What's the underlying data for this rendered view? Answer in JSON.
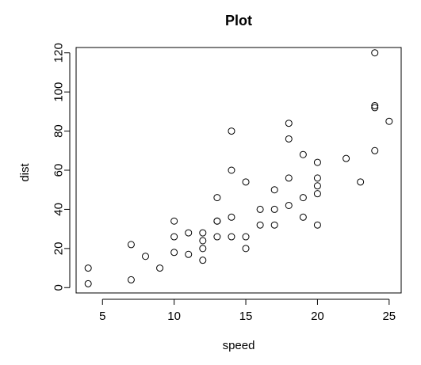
{
  "chart_data": {
    "type": "scatter",
    "title": "Plot",
    "xlabel": "speed",
    "ylabel": "dist",
    "xlim": [
      3.16,
      25.84
    ],
    "ylim": [
      -2.72,
      122.72
    ],
    "xticks": [
      "5",
      "10",
      "15",
      "20",
      "25"
    ],
    "xtick_values": [
      5,
      10,
      15,
      20,
      25
    ],
    "yticks": [
      "0",
      "20",
      "40",
      "60",
      "80",
      "100",
      "120"
    ],
    "ytick_values": [
      0,
      20,
      40,
      60,
      80,
      100,
      120
    ],
    "grid": false,
    "points": [
      {
        "x": 4,
        "y": 2
      },
      {
        "x": 4,
        "y": 10
      },
      {
        "x": 7,
        "y": 4
      },
      {
        "x": 7,
        "y": 22
      },
      {
        "x": 8,
        "y": 16
      },
      {
        "x": 9,
        "y": 10
      },
      {
        "x": 10,
        "y": 18
      },
      {
        "x": 10,
        "y": 26
      },
      {
        "x": 10,
        "y": 34
      },
      {
        "x": 11,
        "y": 17
      },
      {
        "x": 11,
        "y": 28
      },
      {
        "x": 12,
        "y": 14
      },
      {
        "x": 12,
        "y": 20
      },
      {
        "x": 12,
        "y": 24
      },
      {
        "x": 12,
        "y": 28
      },
      {
        "x": 13,
        "y": 26
      },
      {
        "x": 13,
        "y": 34
      },
      {
        "x": 13,
        "y": 34
      },
      {
        "x": 13,
        "y": 46
      },
      {
        "x": 14,
        "y": 26
      },
      {
        "x": 14,
        "y": 36
      },
      {
        "x": 14,
        "y": 60
      },
      {
        "x": 14,
        "y": 80
      },
      {
        "x": 15,
        "y": 20
      },
      {
        "x": 15,
        "y": 26
      },
      {
        "x": 15,
        "y": 54
      },
      {
        "x": 16,
        "y": 32
      },
      {
        "x": 16,
        "y": 40
      },
      {
        "x": 17,
        "y": 32
      },
      {
        "x": 17,
        "y": 40
      },
      {
        "x": 17,
        "y": 50
      },
      {
        "x": 18,
        "y": 42
      },
      {
        "x": 18,
        "y": 56
      },
      {
        "x": 18,
        "y": 76
      },
      {
        "x": 18,
        "y": 84
      },
      {
        "x": 19,
        "y": 36
      },
      {
        "x": 19,
        "y": 46
      },
      {
        "x": 19,
        "y": 68
      },
      {
        "x": 20,
        "y": 32
      },
      {
        "x": 20,
        "y": 48
      },
      {
        "x": 20,
        "y": 52
      },
      {
        "x": 20,
        "y": 56
      },
      {
        "x": 20,
        "y": 64
      },
      {
        "x": 22,
        "y": 66
      },
      {
        "x": 23,
        "y": 54
      },
      {
        "x": 24,
        "y": 70
      },
      {
        "x": 24,
        "y": 92
      },
      {
        "x": 24,
        "y": 93
      },
      {
        "x": 24,
        "y": 120
      },
      {
        "x": 25,
        "y": 85
      }
    ]
  }
}
